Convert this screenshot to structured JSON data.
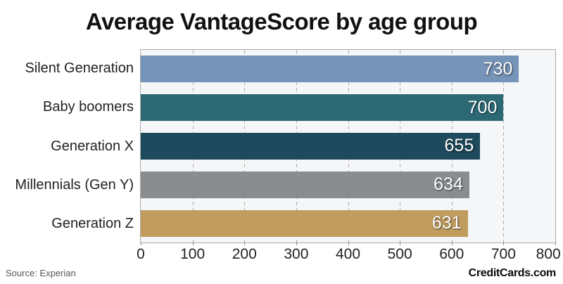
{
  "title": "Average VantageScore by age group",
  "chart_data": {
    "type": "bar",
    "orientation": "horizontal",
    "title": "Average VantageScore by age group",
    "categories": [
      "Silent Generation",
      "Baby boomers",
      "Generation X",
      "Millennials (Gen Y)",
      "Generation Z"
    ],
    "values": [
      730,
      700,
      655,
      634,
      631
    ],
    "bar_colors": [
      "#7594b7",
      "#2d6875",
      "#1d4a5c",
      "#8a8d90",
      "#c09c5f"
    ],
    "xlim": [
      0,
      800
    ],
    "x_ticks": [
      0,
      100,
      200,
      300,
      400,
      500,
      600,
      700,
      800
    ],
    "grid": "vertical-dashed",
    "gridline_color": "#aeaeae",
    "plot_background": "#f4f6f8",
    "plot_border_color": "#a9a9a9",
    "value_label_position": "inside-end",
    "value_label_color": "#ffffff",
    "legend": "none"
  },
  "footer": {
    "source": "Source: Experian",
    "branding": "CreditCards.com"
  }
}
